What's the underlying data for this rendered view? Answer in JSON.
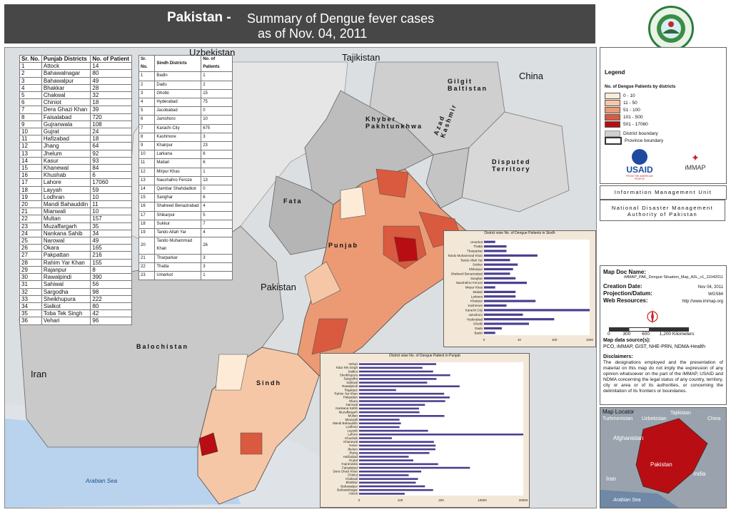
{
  "title": {
    "main": "Pakistan -",
    "sub1": "Summary of Dengue fever cases",
    "sub2": "as of Nov. 04, 2011"
  },
  "logo": {
    "top_text": "PAKISTAN",
    "bottom_text": "NDMA"
  },
  "punjab_table": {
    "headers": [
      "Sr. No.",
      "Punjab Districts",
      "No. of Patient"
    ],
    "rows": [
      [
        "1",
        "Attock",
        "14"
      ],
      [
        "2",
        "Bahawalnagar",
        "80"
      ],
      [
        "3",
        "Bahawalpur",
        "49"
      ],
      [
        "4",
        "Bhakkar",
        "28"
      ],
      [
        "5",
        "Chakwal",
        "32"
      ],
      [
        "6",
        "Chiniot",
        "18"
      ],
      [
        "7",
        "Dera Ghazi Khan",
        "39"
      ],
      [
        "8",
        "Faisalabad",
        "720"
      ],
      [
        "9",
        "Gujranwala",
        "108"
      ],
      [
        "10",
        "Gujrat",
        "24"
      ],
      [
        "11",
        "Hafizabad",
        "18"
      ],
      [
        "12",
        "Jhang",
        "64"
      ],
      [
        "13",
        "Jhelum",
        "92"
      ],
      [
        "14",
        "Kasur",
        "93"
      ],
      [
        "15",
        "Khanewal",
        "84"
      ],
      [
        "16",
        "Khushab",
        "6"
      ],
      [
        "17",
        "Lahore",
        "17060"
      ],
      [
        "18",
        "Layyah",
        "59"
      ],
      [
        "19",
        "Lodhran",
        "10"
      ],
      [
        "20",
        "Mandi Bahauddin",
        "11"
      ],
      [
        "21",
        "Mianwali",
        "10"
      ],
      [
        "22",
        "Multan",
        "157"
      ],
      [
        "23",
        "Muzaffargarh",
        "35"
      ],
      [
        "24",
        "Nankana Sahib",
        "34"
      ],
      [
        "25",
        "Narowal",
        "49"
      ],
      [
        "26",
        "Okara",
        "165"
      ],
      [
        "27",
        "Pakpattan",
        "216"
      ],
      [
        "28",
        "Rahim Yar Khan",
        "155"
      ],
      [
        "29",
        "Rajanpur",
        "8"
      ],
      [
        "30",
        "Rawalpindi",
        "390"
      ],
      [
        "31",
        "Sahiwal",
        "56"
      ],
      [
        "32",
        "Sargodha",
        "98"
      ],
      [
        "33",
        "Sheikhupura",
        "222"
      ],
      [
        "34",
        "Sialkot",
        "80"
      ],
      [
        "35",
        "Toba Tek Singh",
        "42"
      ],
      [
        "36",
        "Vehari",
        "96"
      ]
    ]
  },
  "sindh_table": {
    "headers": [
      "Sr. No.",
      "Sindh Districts",
      "No. of Patients"
    ],
    "rows": [
      [
        "1",
        "Badin",
        "1"
      ],
      [
        "2",
        "Dadu",
        "2"
      ],
      [
        "3",
        "Ghotki",
        "15"
      ],
      [
        "4",
        "Hyderabad",
        "75"
      ],
      [
        "5",
        "Jacobabad",
        "0"
      ],
      [
        "6",
        "Jamshoro",
        "10"
      ],
      [
        "7",
        "Karachi City",
        "675"
      ],
      [
        "8",
        "Kashmore",
        "3"
      ],
      [
        "9",
        "Khairpur",
        "23"
      ],
      [
        "10",
        "Larkana",
        "6"
      ],
      [
        "11",
        "Matiari",
        "6"
      ],
      [
        "12",
        "Mirpur Khas",
        "1"
      ],
      [
        "13",
        "Naushahro Feroze",
        "13"
      ],
      [
        "14",
        "Qambar Shahdadkot",
        "0"
      ],
      [
        "15",
        "Sanghar",
        "6"
      ],
      [
        "16",
        "Shaheed Benazirabad",
        "4"
      ],
      [
        "17",
        "Shikarpur",
        "5"
      ],
      [
        "18",
        "Sukkur",
        "7"
      ],
      [
        "19",
        "Tando Allah Yar",
        "4"
      ],
      [
        "20",
        "Tando Muhammad Khan",
        "26"
      ],
      [
        "21",
        "Tharparkar",
        "3"
      ],
      [
        "22",
        "Thatta",
        "3"
      ],
      [
        "23",
        "Umerkot",
        "1"
      ]
    ]
  },
  "map_labels": {
    "uzbekistan": "Uzbekistan",
    "tajikistan": "Tajikistan",
    "china": "China",
    "iran": "Iran",
    "pakistan": "Pakistan",
    "arabian_sea": "Arabian Sea",
    "gilgit": "Gilgit Baltistan",
    "kpk": "Khyber Pakhtunkhwa",
    "ajk": "Azad Kashmir",
    "disputed": "Disputed Territory",
    "fata": "Fata",
    "punjab": "Punjab",
    "balochistan": "Balochistan",
    "sindh": "Sindh"
  },
  "legend": {
    "title": "Legend",
    "subtitle": "No. of Dengue Patients by districts",
    "classes": [
      {
        "label": "0 - 10",
        "color": "#fdebd8"
      },
      {
        "label": "11 - 50",
        "color": "#f5c7a6"
      },
      {
        "label": "51 - 100",
        "color": "#eb9a74"
      },
      {
        "label": "101 - 500",
        "color": "#d95a3e"
      },
      {
        "label": "501 - 17060",
        "color": "#b80d12"
      }
    ],
    "district_boundary": "District boundary",
    "province_boundary": "Province boundary"
  },
  "partners": {
    "usaid": "USAID",
    "usaid_tag": "FROM THE AMERICAN PEOPLE",
    "immap": "iMMAP"
  },
  "info_unit": "Information Management Unit",
  "ndma": "National Disaster Management Authority of Pakistan",
  "map_doc": {
    "name_label": "Map Doc Name:",
    "name": "iMMAP_PAK_Dengue Situation_Map_A3L_v1_11042011",
    "creation_label": "Creation Date:",
    "creation": "Nov 04, 2011",
    "projection_label": "Projection/Datum:",
    "projection": "WGS84",
    "web_label": "Web Resources:",
    "web": "http://www.immap.org"
  },
  "scale": {
    "ticks": [
      "0",
      "300",
      "600",
      "1,200 Kilometers"
    ]
  },
  "sources": {
    "label": "Map data source(s):",
    "text": "PCO, iMMAP, GIST, NHE-PRN, NDMA-Health"
  },
  "disclaimers": {
    "label": "Disclaimers:",
    "text": "The designations employed and the presentation of material on this map do not imply the expression of any opinion whatsoever on the part of the iMMAP, USAID and NDMA concerning the legal status of any country, territory, city or area or of its authorities, or concerning the delimitation of its frontiers or boundaries."
  },
  "locator": {
    "label": "Map Locator",
    "tajikistan": "Tajikistan",
    "china": "China",
    "uzbekistan": "Uzbekistan",
    "turkmenistan": "Turkmenistan",
    "afghanistan": "Afghanistan",
    "pakistan": "Pakistan",
    "iran": "Iran",
    "india": "India",
    "arabian_sea": "Arabian Sea"
  },
  "chart_data": [
    {
      "type": "bar",
      "title": "District wise No. of Dengue Patients in Sindh",
      "categories": [
        "Umerkot",
        "Thatta",
        "Tharparkar",
        "Tando Muhammad Khan",
        "Tando Allah Yar",
        "Sukkur",
        "Shikarpur",
        "Shaheed Benazirabad",
        "Sanghar",
        "Naushahro Feroze",
        "Mirpur Khas",
        "Matiari",
        "Larkana",
        "Khairpur",
        "Kashmore",
        "Karachi City",
        "Jamshoro",
        "Hyderabad",
        "Ghotki",
        "Dadu",
        "Badin"
      ],
      "values": [
        1,
        3,
        3,
        26,
        4,
        7,
        5,
        4,
        6,
        13,
        1,
        6,
        6,
        23,
        3,
        675,
        10,
        75,
        15,
        2,
        1
      ],
      "x_ticks": [
        "0",
        "10",
        "100",
        "1000"
      ],
      "xscale": "log"
    },
    {
      "type": "bar",
      "title": "District wise No. of Dengue Patient in Punjab",
      "categories": [
        "Vehari",
        "Toba Tek Singh",
        "Sialkot",
        "Sheikhupura",
        "Sargodha",
        "Sahiwal",
        "Rawalpindi",
        "Rajanpur",
        "Rahim Yar Khan",
        "Pakpattan",
        "Okara",
        "Narowal",
        "Nankana Sahib",
        "Muzaffargarh",
        "Multan",
        "Mianwali",
        "Mandi Bahauddin",
        "Lodhran",
        "Layyah",
        "Lahore",
        "Khushab",
        "Khanewal",
        "Kasur",
        "Jhelum",
        "Jhang",
        "Hafizabad",
        "Gujrat",
        "Gujranwala",
        "Faisalabad",
        "Dera Ghazi Khan",
        "Chiniot",
        "Chakwal",
        "Bhakkar",
        "Bahawalpur",
        "Bahawalnagar",
        "Attock"
      ],
      "values": [
        96,
        42,
        80,
        222,
        98,
        56,
        390,
        8,
        155,
        216,
        165,
        49,
        34,
        35,
        157,
        10,
        11,
        10,
        59,
        17060,
        6,
        84,
        93,
        92,
        64,
        18,
        24,
        108,
        720,
        39,
        18,
        32,
        28,
        49,
        80,
        14
      ],
      "x_ticks": [
        "0",
        "100",
        "200",
        "10000",
        "20000"
      ],
      "xscale": "log"
    }
  ]
}
